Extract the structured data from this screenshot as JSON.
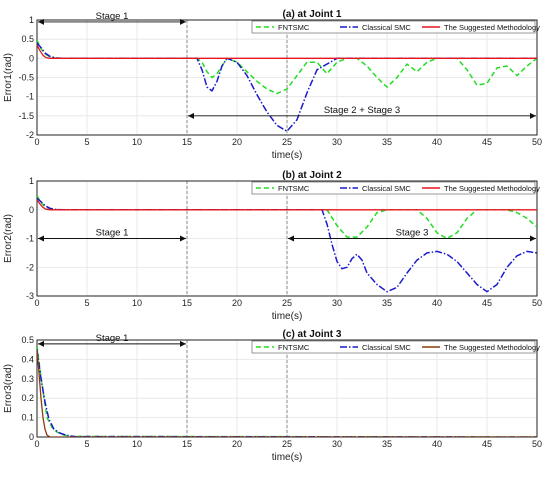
{
  "chart_data": [
    {
      "type": "line",
      "title": "(a) at Joint 1",
      "xlabel": "time(s)",
      "ylabel": "Error1(rad)",
      "xlim": [
        0,
        50
      ],
      "ylim": [
        -2,
        1
      ],
      "x_ticks": [
        0,
        5,
        10,
        15,
        20,
        25,
        30,
        35,
        40,
        45,
        50
      ],
      "y_ticks": [
        1,
        0.5,
        0,
        -0.5,
        -1,
        -1.5,
        -2
      ],
      "x_tick_labels": [
        "0",
        "5",
        "10",
        "15",
        "20",
        "25",
        "30",
        "35",
        "40",
        "45",
        "50"
      ],
      "y_tick_labels": [
        "1",
        "0.5",
        "0",
        "-0.5",
        "-1",
        "-1.5",
        "-2"
      ],
      "grid": true,
      "legend_position": "top-right",
      "series": [
        {
          "name": "FNTSMC",
          "color": "#22dd22",
          "style": "dashed",
          "x": [
            0,
            0.3,
            0.7,
            1.2,
            1.8,
            2.5,
            16,
            16.5,
            17,
            17.5,
            18,
            18.5,
            19,
            20,
            21,
            22,
            23,
            24,
            25,
            26,
            27,
            28,
            29,
            30,
            31,
            32,
            33,
            34,
            35,
            36,
            37,
            38,
            39,
            40,
            41,
            42,
            43,
            44,
            45,
            46,
            47,
            48,
            49,
            50
          ],
          "values": [
            0.48,
            0.3,
            0.14,
            0.05,
            0.01,
            0,
            0,
            -0.1,
            -0.35,
            -0.5,
            -0.4,
            -0.2,
            0,
            -0.1,
            -0.35,
            -0.6,
            -0.8,
            -0.92,
            -0.8,
            -0.45,
            -0.1,
            -0.1,
            -0.4,
            -0.1,
            0,
            0,
            -0.2,
            -0.5,
            -0.75,
            -0.5,
            -0.15,
            -0.35,
            -0.1,
            0,
            0,
            0,
            -0.3,
            -0.7,
            -0.65,
            -0.25,
            -0.2,
            -0.45,
            -0.2,
            0
          ]
        },
        {
          "name": "Classical SMC",
          "color": "#1a1acc",
          "style": "dashdot",
          "x": [
            0,
            0.4,
            0.8,
            1.3,
            1.9,
            2.8,
            16,
            16.5,
            17,
            17.5,
            18,
            18.5,
            19,
            20,
            21,
            22,
            23,
            24,
            25,
            26,
            27,
            28,
            30,
            50
          ],
          "values": [
            0.4,
            0.28,
            0.14,
            0.05,
            0.01,
            0,
            0,
            -0.3,
            -0.75,
            -0.85,
            -0.6,
            -0.2,
            0,
            -0.1,
            -0.45,
            -0.95,
            -1.4,
            -1.75,
            -1.9,
            -1.6,
            -0.9,
            -0.3,
            0,
            0
          ]
        },
        {
          "name": "The Suggested Methodology",
          "color": "#e8141e",
          "style": "solid",
          "x": [
            0,
            0.3,
            0.6,
            0.9,
            1.3,
            50
          ],
          "values": [
            0.35,
            0.2,
            0.08,
            0.02,
            0,
            0
          ]
        }
      ],
      "annotations": [
        {
          "text": "Stage 1",
          "from": 0,
          "to": 15,
          "at": 0.95
        },
        {
          "text": "Stage 2 + Stage 3",
          "from": 15,
          "to": 50,
          "at": -1.5
        }
      ]
    },
    {
      "type": "line",
      "title": "(b) at Joint 2",
      "xlabel": "time(s)",
      "ylabel": "Error2(rad)",
      "xlim": [
        0,
        50
      ],
      "ylim": [
        -3,
        1
      ],
      "x_ticks": [
        0,
        5,
        10,
        15,
        20,
        25,
        30,
        35,
        40,
        45,
        50
      ],
      "y_ticks": [
        1,
        0,
        -1,
        -2,
        -3
      ],
      "x_tick_labels": [
        "0",
        "5",
        "10",
        "15",
        "20",
        "25",
        "30",
        "35",
        "40",
        "45",
        "50"
      ],
      "y_tick_labels": [
        "1",
        "0",
        "-1",
        "-2",
        "-3"
      ],
      "grid": true,
      "legend_position": "top-right",
      "series": [
        {
          "name": "FNTSMC",
          "color": "#22dd22",
          "style": "dashed",
          "x": [
            0,
            0.3,
            0.7,
            1.2,
            1.8,
            2.5,
            29,
            30,
            31,
            32,
            33,
            34,
            35,
            36,
            37,
            38,
            39,
            40,
            41,
            42,
            43,
            44,
            45,
            46,
            47,
            48,
            49,
            50
          ],
          "values": [
            0.5,
            0.3,
            0.14,
            0.05,
            0.01,
            0,
            0,
            -0.55,
            -0.95,
            -0.95,
            -0.6,
            -0.1,
            0,
            0,
            0,
            0,
            -0.3,
            -0.8,
            -1.0,
            -0.8,
            -0.3,
            0,
            0,
            0,
            0,
            -0.1,
            -0.3,
            -0.6
          ]
        },
        {
          "name": "Classical SMC",
          "color": "#1a1acc",
          "style": "dashdot",
          "x": [
            0,
            0.4,
            0.8,
            1.3,
            1.9,
            2.8,
            28.5,
            29,
            29.5,
            30,
            30.5,
            31,
            31.5,
            32,
            32.5,
            33,
            34,
            35,
            36,
            37,
            38,
            39,
            40,
            41,
            42,
            43,
            44,
            45,
            46,
            47,
            48,
            49,
            50
          ],
          "values": [
            0.4,
            0.28,
            0.14,
            0.05,
            0.01,
            0,
            0,
            -0.5,
            -1.2,
            -1.8,
            -2.05,
            -2.0,
            -1.7,
            -1.55,
            -1.75,
            -2.2,
            -2.6,
            -2.85,
            -2.7,
            -2.2,
            -1.75,
            -1.5,
            -1.45,
            -1.55,
            -1.8,
            -2.2,
            -2.6,
            -2.85,
            -2.6,
            -2.0,
            -1.6,
            -1.45,
            -1.5
          ]
        },
        {
          "name": "The Suggested Methodology",
          "color": "#e8141e",
          "style": "solid",
          "x": [
            0,
            0.3,
            0.6,
            0.9,
            1.3,
            50
          ],
          "values": [
            0.35,
            0.2,
            0.08,
            0.02,
            0,
            0
          ]
        }
      ],
      "annotations": [
        {
          "text": "Stage 1",
          "from": 0,
          "to": 15,
          "at": -1.0
        },
        {
          "text": "Stage 3",
          "from": 25,
          "to": 50,
          "at": -1.0
        }
      ]
    },
    {
      "type": "line",
      "title": "(c) at Joint 3",
      "xlabel": "time(s)",
      "ylabel": "Error3(rad)",
      "xlim": [
        0,
        50
      ],
      "ylim": [
        0,
        0.5
      ],
      "x_ticks": [
        0,
        5,
        10,
        15,
        20,
        25,
        30,
        35,
        40,
        45,
        50
      ],
      "y_ticks": [
        0.5,
        0.4,
        0.3,
        0.2,
        0.1,
        0
      ],
      "x_tick_labels": [
        "0",
        "5",
        "10",
        "15",
        "20",
        "25",
        "30",
        "35",
        "40",
        "45",
        "50"
      ],
      "y_tick_labels": [
        "0.5",
        "0.4",
        "0.3",
        "0.2",
        "0.1",
        "0"
      ],
      "grid": true,
      "legend_position": "top-right",
      "series": [
        {
          "name": "FNTSMC",
          "color": "#22dd22",
          "style": "dashed",
          "x": [
            0,
            0.3,
            0.7,
            1.0,
            1.5,
            2.0,
            2.7,
            3.5,
            50
          ],
          "values": [
            0.47,
            0.35,
            0.2,
            0.1,
            0.05,
            0.025,
            0.01,
            0.003,
            0
          ]
        },
        {
          "name": "Classical SMC",
          "color": "#1a1acc",
          "style": "dashdot",
          "x": [
            0,
            0.4,
            0.8,
            1.2,
            1.7,
            2.3,
            3.0,
            3.8,
            50
          ],
          "values": [
            0.45,
            0.3,
            0.18,
            0.09,
            0.04,
            0.02,
            0.008,
            0.002,
            0
          ]
        },
        {
          "name": "The Suggested Methodology",
          "color": "#8b3a0e",
          "style": "solid",
          "x": [
            0,
            0.2,
            0.4,
            0.6,
            0.8,
            1.0,
            1.3,
            50
          ],
          "values": [
            0.45,
            0.33,
            0.2,
            0.1,
            0.04,
            0.01,
            0,
            0
          ]
        }
      ],
      "annotations": [
        {
          "text": "Stage 1",
          "from": 0,
          "to": 15,
          "at": 0.48
        }
      ]
    }
  ]
}
